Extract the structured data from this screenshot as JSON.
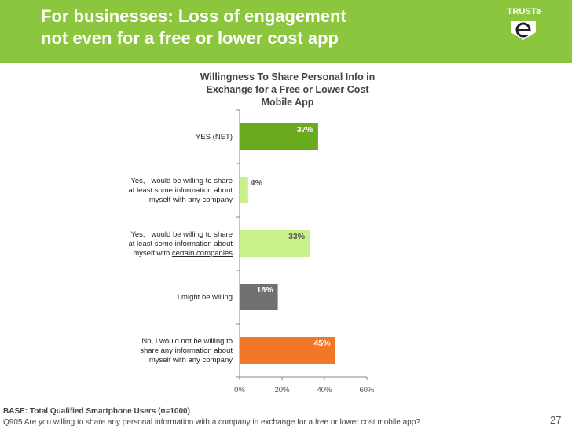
{
  "header": {
    "title": "For businesses: Loss of engagement\nnot even for a free or lower cost app",
    "background": "#8cc63f",
    "logo_text": "TRUSTe",
    "logo_icon": "truste-e-icon"
  },
  "chart_data": {
    "type": "bar",
    "orientation": "horizontal",
    "title": "Willingness To Share Personal Info in\nExchange for a Free or Lower Cost\nMobile App",
    "categories": [
      {
        "lines": [
          [
            {
              "t": "YES (NET)",
              "u": false
            }
          ]
        ]
      },
      {
        "lines": [
          [
            {
              "t": "Yes, I would be willing to share",
              "u": false
            }
          ],
          [
            {
              "t": "at least some information about",
              "u": false
            }
          ],
          [
            {
              "t": "myself with ",
              "u": false
            },
            {
              "t": "any company",
              "u": true
            }
          ]
        ]
      },
      {
        "lines": [
          [
            {
              "t": "Yes, I would be willing to share",
              "u": false
            }
          ],
          [
            {
              "t": "at least some information about",
              "u": false
            }
          ],
          [
            {
              "t": "myself with ",
              "u": false
            },
            {
              "t": "certain companies",
              "u": true
            }
          ]
        ]
      },
      {
        "lines": [
          [
            {
              "t": "I might be willing",
              "u": false
            }
          ]
        ]
      },
      {
        "lines": [
          [
            {
              "t": "No, I would not be willing to",
              "u": false
            }
          ],
          [
            {
              "t": "share any information about",
              "u": false
            }
          ],
          [
            {
              "t": "myself with any company",
              "u": false
            }
          ]
        ]
      }
    ],
    "values": [
      37,
      4,
      33,
      18,
      45
    ],
    "value_labels": [
      "37%",
      "4%",
      "33%",
      "18%",
      "45%"
    ],
    "bar_colors": [
      "#6aaa1e",
      "#c9f08a",
      "#c9f08a",
      "#707070",
      "#f07828"
    ],
    "label_colors": [
      "#ffffff",
      "#555555",
      "#555555",
      "#ffffff",
      "#ffffff"
    ],
    "xlim": [
      0,
      60
    ],
    "xticks": [
      0,
      20,
      40,
      60
    ],
    "xtick_labels": [
      "0%",
      "20%",
      "40%",
      "60%"
    ],
    "grid": false
  },
  "footer": {
    "base": "BASE: Total Qualified Smartphone Users (n=1000)",
    "question": "Q905  Are you willing to share any personal information with a company in exchange for a free or lower cost mobile app?",
    "page_number": "27"
  }
}
